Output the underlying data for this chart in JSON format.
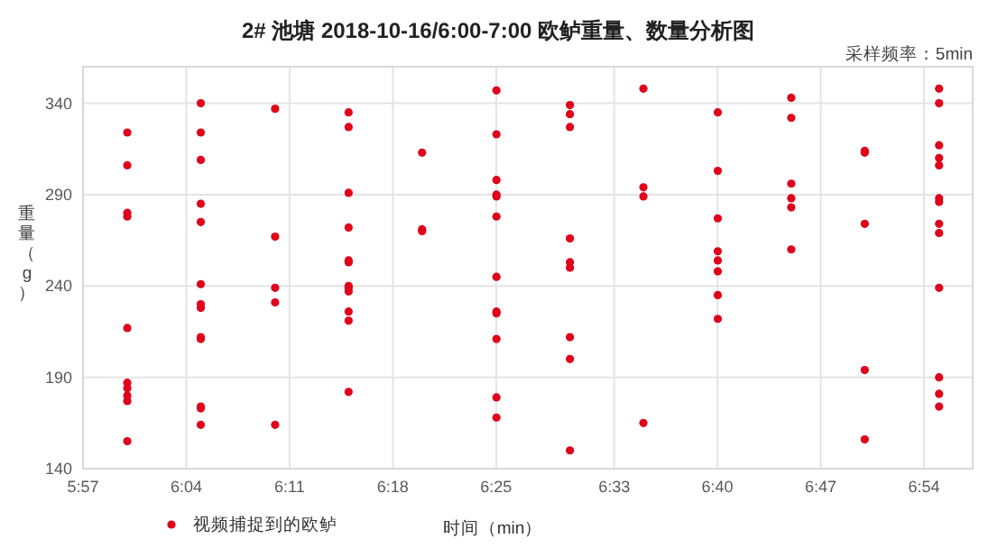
{
  "chart_data": {
    "type": "scatter",
    "title": "2# 池塘 2018-10-16/6:00-7:00 欧鲈重量、数量分析图",
    "annotations": [
      "采样频率：5min"
    ],
    "xlabel": "时间（min）",
    "ylabel": "重量（g）",
    "xlim": [
      5.95,
      6.955
    ],
    "ylim": [
      140,
      360
    ],
    "xticks": [
      {
        "value": 5.95,
        "label": "5:57"
      },
      {
        "value": 6.0667,
        "label": "6:04"
      },
      {
        "value": 6.1833,
        "label": "6:11"
      },
      {
        "value": 6.3,
        "label": "6:18"
      },
      {
        "value": 6.4167,
        "label": "6:25"
      },
      {
        "value": 6.55,
        "label": "6:33"
      },
      {
        "value": 6.6667,
        "label": "6:40"
      },
      {
        "value": 6.7833,
        "label": "6:47"
      },
      {
        "value": 6.9,
        "label": "6:54"
      }
    ],
    "yticks": [
      140,
      190,
      240,
      290,
      340
    ],
    "grid": true,
    "legend": "bottom",
    "marker": "circle",
    "series": [
      {
        "name": "视频捕捉到的欧鲈",
        "color": "#e0001b",
        "x": [
          6,
          6,
          6,
          6,
          6,
          6,
          6,
          6,
          6,
          6,
          6.083,
          6.083,
          6.083,
          6.083,
          6.083,
          6.083,
          6.083,
          6.083,
          6.083,
          6.083,
          6.083,
          6.083,
          6.083,
          6.167,
          6.167,
          6.167,
          6.167,
          6.167,
          6.25,
          6.25,
          6.25,
          6.25,
          6.25,
          6.25,
          6.25,
          6.25,
          6.25,
          6.25,
          6.25,
          6.25,
          6.333,
          6.333,
          6.333,
          6.417,
          6.417,
          6.417,
          6.417,
          6.417,
          6.417,
          6.417,
          6.417,
          6.417,
          6.417,
          6.417,
          6.417,
          6.5,
          6.5,
          6.5,
          6.5,
          6.5,
          6.5,
          6.5,
          6.5,
          6.5,
          6.583,
          6.583,
          6.583,
          6.583,
          6.667,
          6.667,
          6.667,
          6.667,
          6.667,
          6.667,
          6.667,
          6.667,
          6.75,
          6.75,
          6.75,
          6.75,
          6.75,
          6.75,
          6.833,
          6.833,
          6.833,
          6.833,
          6.833,
          6.917,
          6.917,
          6.917,
          6.917,
          6.917,
          6.917,
          6.917,
          6.917,
          6.917,
          6.917,
          6.917,
          6.917,
          6.917
        ],
        "values": [
          324,
          306,
          280,
          278,
          217,
          187,
          184,
          180,
          177,
          155,
          340,
          324,
          309,
          285,
          275,
          241,
          230,
          228,
          212,
          211,
          174,
          173,
          164,
          337,
          267,
          239,
          231,
          164,
          335,
          327,
          291,
          272,
          254,
          253,
          240,
          239,
          237,
          226,
          221,
          182,
          313,
          271,
          270,
          347,
          323,
          298,
          290,
          289,
          278,
          245,
          226,
          225,
          211,
          179,
          168,
          339,
          334,
          327,
          266,
          253,
          250,
          212,
          200,
          150,
          348,
          294,
          289,
          165,
          335,
          303,
          277,
          259,
          254,
          248,
          235,
          222,
          343,
          332,
          296,
          288,
          283,
          260,
          314,
          313,
          274,
          194,
          156,
          348,
          340,
          317,
          310,
          306,
          288,
          286,
          274,
          269,
          239,
          190,
          181,
          174
        ]
      }
    ]
  }
}
